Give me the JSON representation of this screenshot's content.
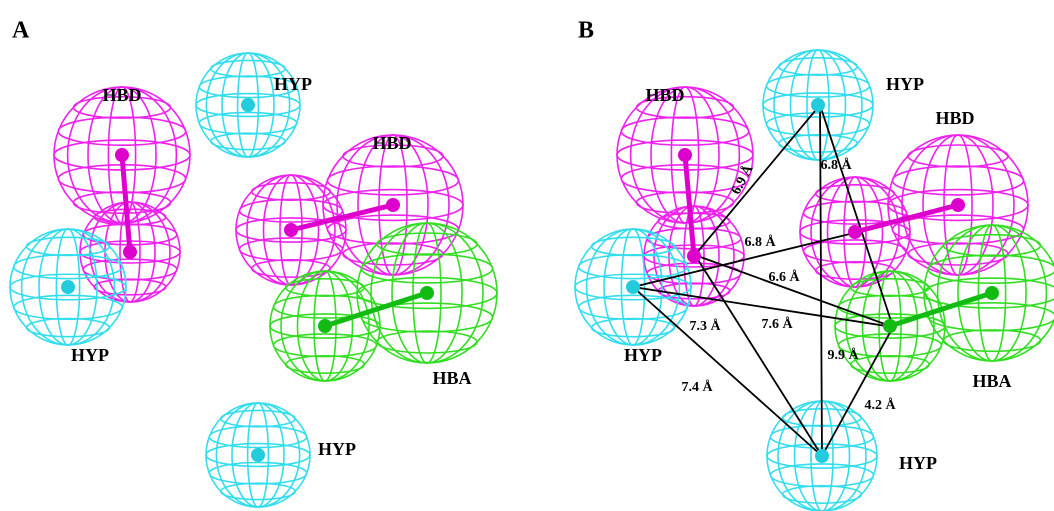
{
  "panels": [
    {
      "label": "A",
      "features": [
        "HBD",
        "HYP",
        "HBD",
        "HYP",
        "HBA",
        "HYP"
      ]
    },
    {
      "label": "B",
      "features": [
        "HBD",
        "HYP",
        "HBD",
        "HYP",
        "HBA",
        "HYP"
      ],
      "distances": [
        "6.9 Å",
        "6.8 Å",
        "6.8 Å",
        "6.6 Å",
        "7.6 Å",
        "7.3 Å",
        "9.9 Å",
        "7.4 Å",
        "4.2 Å"
      ]
    }
  ]
}
